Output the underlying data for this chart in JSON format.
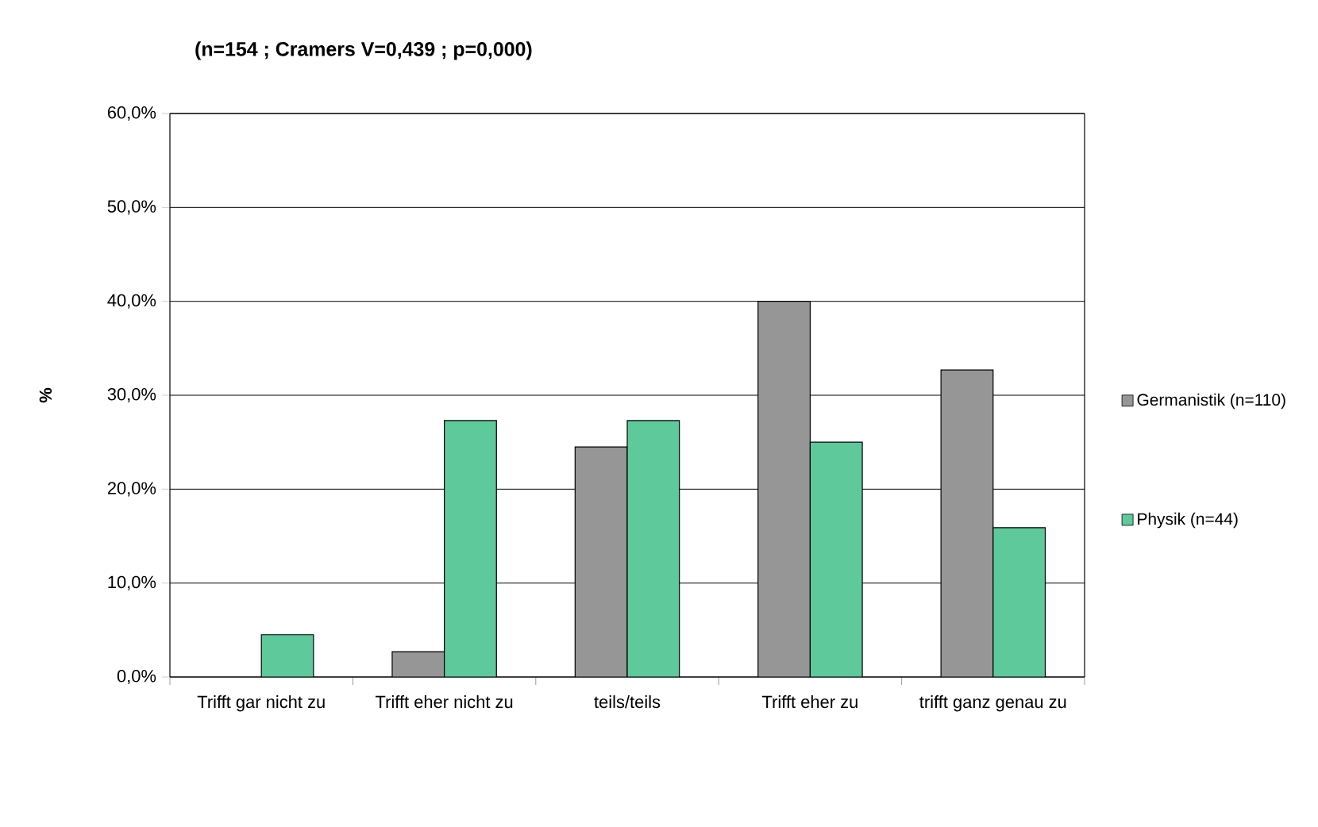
{
  "chart_data": {
    "type": "bar",
    "title": "(n=154 ; Cramers V=0,439 ; p=0,000)",
    "ylabel": "%",
    "categories": [
      "Trifft gar nicht zu",
      "Trifft eher nicht zu",
      "teils/teils",
      "Trifft eher zu",
      "trifft ganz genau zu"
    ],
    "series": [
      {
        "name": "Germanistik (n=110)",
        "color": "#969696",
        "values": [
          0,
          2.7,
          24.5,
          40.0,
          32.7
        ]
      },
      {
        "name": "Physik (n=44)",
        "color": "#5ec99a",
        "values": [
          4.5,
          27.3,
          27.3,
          25.0,
          15.9
        ]
      }
    ],
    "ylim": [
      0,
      60
    ],
    "yticks": [
      {
        "value": 0,
        "label": "0,0%"
      },
      {
        "value": 10,
        "label": "10,0%"
      },
      {
        "value": 20,
        "label": "20,0%"
      },
      {
        "value": 30,
        "label": "30,0%"
      },
      {
        "value": 40,
        "label": "40,0%"
      },
      {
        "value": 50,
        "label": "50,0%"
      },
      {
        "value": 60,
        "label": "60,0%"
      }
    ],
    "grid": "y",
    "legend": "right"
  }
}
